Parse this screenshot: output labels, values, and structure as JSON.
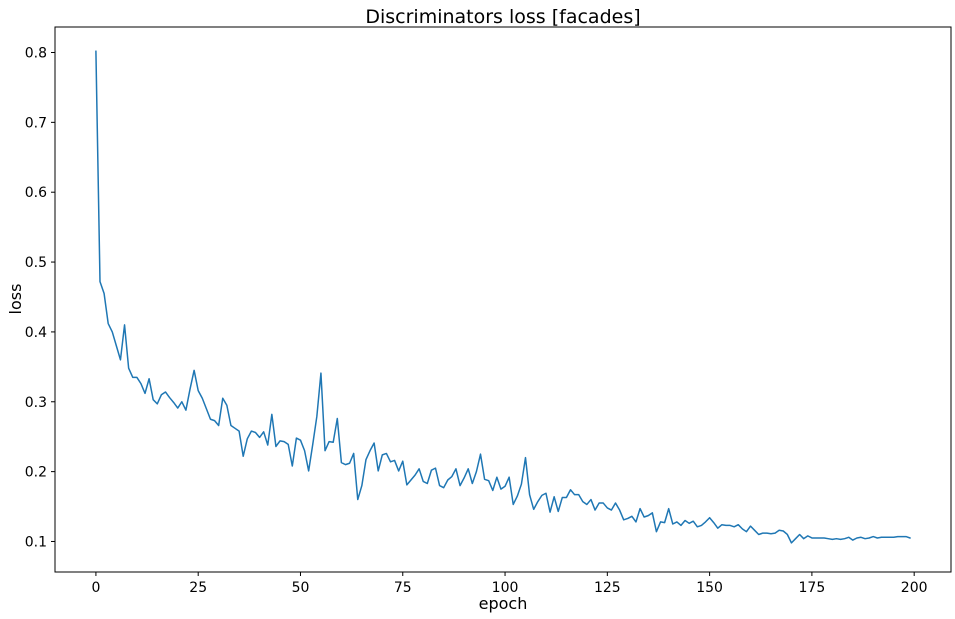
{
  "chart_data": {
    "type": "line",
    "title": "Discriminators loss [facades]",
    "xlabel": "epoch",
    "ylabel": "loss",
    "xlim": [
      -10,
      209
    ],
    "ylim": [
      0.0563,
      0.8365
    ],
    "xticks": [
      0,
      25,
      50,
      75,
      100,
      125,
      150,
      175,
      200
    ],
    "yticks": [
      0.1,
      0.2,
      0.3,
      0.4,
      0.5,
      0.6,
      0.7,
      0.8
    ],
    "ytick_labels": [
      "0.1",
      "0.2",
      "0.3",
      "0.4",
      "0.5",
      "0.6",
      "0.7",
      "0.8"
    ],
    "grid": false,
    "series": [
      {
        "color": "#1f77b4",
        "x_start": 0,
        "x_step": 1,
        "values": [
          0.802,
          0.472,
          0.455,
          0.412,
          0.4,
          0.38,
          0.36,
          0.41,
          0.348,
          0.335,
          0.335,
          0.326,
          0.312,
          0.333,
          0.303,
          0.297,
          0.31,
          0.314,
          0.306,
          0.299,
          0.291,
          0.3,
          0.288,
          0.318,
          0.345,
          0.316,
          0.305,
          0.29,
          0.275,
          0.273,
          0.266,
          0.305,
          0.295,
          0.266,
          0.262,
          0.258,
          0.222,
          0.247,
          0.258,
          0.256,
          0.249,
          0.257,
          0.238,
          0.282,
          0.236,
          0.244,
          0.243,
          0.239,
          0.208,
          0.248,
          0.245,
          0.23,
          0.201,
          0.239,
          0.279,
          0.341,
          0.23,
          0.243,
          0.242,
          0.276,
          0.213,
          0.21,
          0.212,
          0.226,
          0.16,
          0.18,
          0.217,
          0.23,
          0.241,
          0.201,
          0.224,
          0.226,
          0.214,
          0.216,
          0.201,
          0.215,
          0.181,
          0.188,
          0.195,
          0.204,
          0.186,
          0.183,
          0.202,
          0.205,
          0.18,
          0.177,
          0.188,
          0.193,
          0.204,
          0.18,
          0.191,
          0.204,
          0.183,
          0.2,
          0.225,
          0.189,
          0.187,
          0.173,
          0.192,
          0.175,
          0.179,
          0.192,
          0.153,
          0.165,
          0.182,
          0.22,
          0.167,
          0.146,
          0.157,
          0.166,
          0.169,
          0.142,
          0.164,
          0.143,
          0.163,
          0.163,
          0.174,
          0.167,
          0.167,
          0.157,
          0.153,
          0.16,
          0.145,
          0.155,
          0.155,
          0.148,
          0.145,
          0.155,
          0.145,
          0.131,
          0.133,
          0.136,
          0.128,
          0.147,
          0.135,
          0.137,
          0.141,
          0.114,
          0.128,
          0.127,
          0.147,
          0.125,
          0.128,
          0.123,
          0.13,
          0.126,
          0.129,
          0.121,
          0.123,
          0.128,
          0.134,
          0.127,
          0.119,
          0.124,
          0.123,
          0.123,
          0.121,
          0.124,
          0.118,
          0.114,
          0.122,
          0.116,
          0.11,
          0.112,
          0.112,
          0.111,
          0.112,
          0.116,
          0.115,
          0.11,
          0.098,
          0.104,
          0.11,
          0.104,
          0.108,
          0.105,
          0.105,
          0.105,
          0.105,
          0.104,
          0.103,
          0.104,
          0.103,
          0.104,
          0.106,
          0.102,
          0.105,
          0.106,
          0.104,
          0.105,
          0.107,
          0.105,
          0.106,
          0.106,
          0.106,
          0.106,
          0.107,
          0.107,
          0.107,
          0.105
        ]
      }
    ]
  }
}
